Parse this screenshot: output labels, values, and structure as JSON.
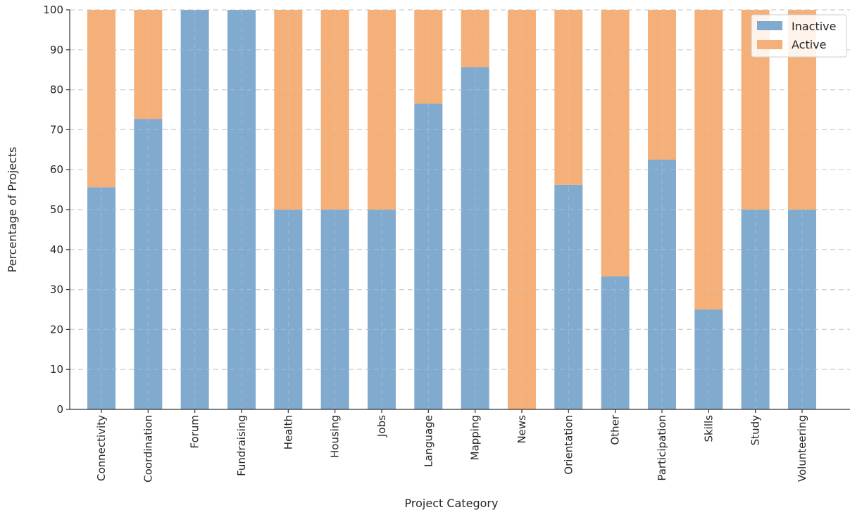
{
  "chart_data": {
    "type": "bar",
    "stacked": true,
    "percent_stacked": true,
    "title": "",
    "xlabel": "Project Category",
    "ylabel": "Percentage of Projects",
    "ylim": [
      0,
      100
    ],
    "yticks": [
      0,
      10,
      20,
      30,
      40,
      50,
      60,
      70,
      80,
      90,
      100
    ],
    "grid": "horizontal dashed",
    "legend_position": "top-right",
    "categories": [
      "Connectivity",
      "Coordination",
      "Forum",
      "Fundraising",
      "Health",
      "Housing",
      "Jobs",
      "Language",
      "Mapping",
      "News",
      "Orientation",
      "Other",
      "Participation",
      "Skills",
      "Study",
      "Volunteering"
    ],
    "series": [
      {
        "name": "Inactive",
        "color": "#81aacf",
        "values": [
          55.6,
          72.7,
          100,
          100,
          50,
          50,
          50,
          76.5,
          85.7,
          0,
          56.2,
          33.3,
          62.5,
          25,
          50,
          50
        ]
      },
      {
        "name": "Active",
        "color": "#f4b078",
        "values": [
          44.4,
          27.3,
          0,
          0,
          50,
          50,
          50,
          23.5,
          14.3,
          100,
          43.8,
          66.7,
          37.5,
          75,
          50,
          50
        ]
      }
    ]
  }
}
